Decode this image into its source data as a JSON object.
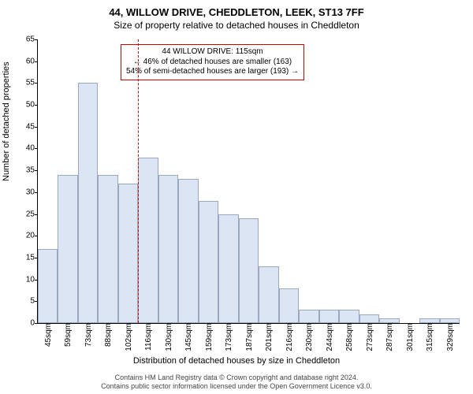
{
  "title": "44, WILLOW DRIVE, CHEDDLETON, LEEK, ST13 7FF",
  "subtitle": "Size of property relative to detached houses in Cheddleton",
  "ylabel": "Number of detached properties",
  "xlabel": "Distribution of detached houses by size in Cheddleton",
  "footer_line1": "Contains HM Land Registry data © Crown copyright and database right 2024.",
  "footer_line2": "Contains public sector information licensed under the Open Government Licence v3.0.",
  "chart": {
    "type": "histogram",
    "ylim": [
      0,
      65
    ],
    "ytick_step": 5,
    "bar_fill": "#dbe5f4",
    "bar_border": "#9aa8c0",
    "refline_color": "#d00000",
    "annotation_border": "#d00000",
    "categories": [
      "45sqm",
      "59sqm",
      "73sqm",
      "88sqm",
      "102sqm",
      "116sqm",
      "130sqm",
      "145sqm",
      "159sqm",
      "173sqm",
      "187sqm",
      "201sqm",
      "216sqm",
      "230sqm",
      "244sqm",
      "258sqm",
      "273sqm",
      "287sqm",
      "301sqm",
      "315sqm",
      "329sqm"
    ],
    "values": [
      17,
      34,
      55,
      34,
      32,
      38,
      34,
      33,
      28,
      25,
      24,
      13,
      8,
      3,
      3,
      3,
      2,
      1,
      0,
      1,
      1
    ],
    "refline_at_index": 5,
    "annotation": {
      "line1": "44 WILLOW DRIVE: 115sqm",
      "line2": "← 46% of detached houses are smaller (163)",
      "line3": "54% of semi-detached houses are larger (193) →"
    }
  }
}
